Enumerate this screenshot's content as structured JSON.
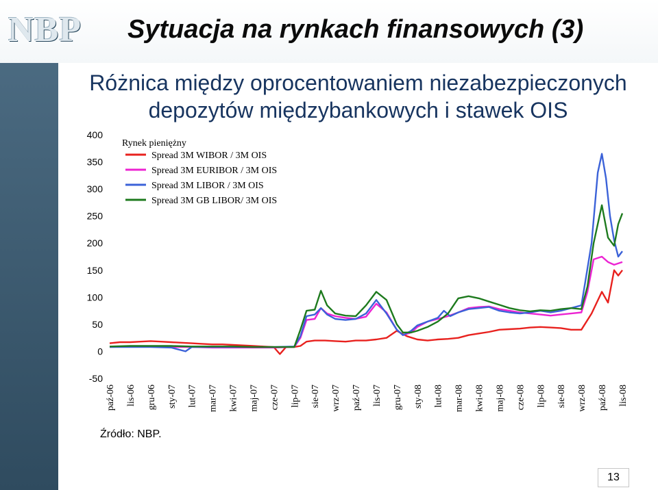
{
  "header": {
    "logo": "NBP",
    "title": "Sytuacja na rynkach finansowych  (3)"
  },
  "chart_data": {
    "type": "line",
    "title_lines": [
      "Różnica między oprocentowaniem niezabezpieczonych",
      "depozytów międzybankowych i stawek OIS"
    ],
    "ylim": [
      -50,
      400
    ],
    "yticks": [
      400,
      350,
      300,
      250,
      200,
      150,
      100,
      50,
      0,
      -50
    ],
    "x_ticks": [
      "paź-06",
      "lis-06",
      "gru-06",
      "sty-07",
      "lut-07",
      "mar-07",
      "kwi-07",
      "maj-07",
      "cze-07",
      "lip-07",
      "sie-07",
      "wrz-07",
      "paź-07",
      "lis-07",
      "gru-07",
      "sty-08",
      "lut-08",
      "mar-08",
      "kwi-08",
      "maj-08",
      "cze-08",
      "lip-08",
      "sie-08",
      "wrz-08",
      "paź-08",
      "lis-08"
    ],
    "legend_title": "Rynek pieniężny",
    "legend_position": "top-left",
    "grid": false,
    "series": [
      {
        "name": "Spread  3M WIBOR / 3M OIS",
        "color": "#e8211e",
        "points": [
          [
            0,
            15
          ],
          [
            0.5,
            17
          ],
          [
            1,
            17
          ],
          [
            1.5,
            18
          ],
          [
            2,
            19
          ],
          [
            2.5,
            18
          ],
          [
            3,
            17
          ],
          [
            3.5,
            16
          ],
          [
            4,
            15
          ],
          [
            4.5,
            14
          ],
          [
            5,
            13
          ],
          [
            5.5,
            13
          ],
          [
            6,
            12
          ],
          [
            6.5,
            11
          ],
          [
            7,
            10
          ],
          [
            7.5,
            9
          ],
          [
            8,
            8
          ],
          [
            8.3,
            -5
          ],
          [
            8.6,
            8
          ],
          [
            9,
            8
          ],
          [
            9.3,
            10
          ],
          [
            9.6,
            18
          ],
          [
            10,
            20
          ],
          [
            10.5,
            20
          ],
          [
            11,
            19
          ],
          [
            11.5,
            18
          ],
          [
            12,
            20
          ],
          [
            12.5,
            20
          ],
          [
            13,
            22
          ],
          [
            13.5,
            25
          ],
          [
            14,
            38
          ],
          [
            14.5,
            28
          ],
          [
            15,
            22
          ],
          [
            15.5,
            20
          ],
          [
            16,
            22
          ],
          [
            16.5,
            23
          ],
          [
            17,
            25
          ],
          [
            17.5,
            30
          ],
          [
            18,
            33
          ],
          [
            18.5,
            36
          ],
          [
            19,
            40
          ],
          [
            19.5,
            41
          ],
          [
            20,
            42
          ],
          [
            20.5,
            44
          ],
          [
            21,
            45
          ],
          [
            21.5,
            44
          ],
          [
            22,
            43
          ],
          [
            22.5,
            40
          ],
          [
            23,
            40
          ],
          [
            23.5,
            70
          ],
          [
            24,
            110
          ],
          [
            24.3,
            90
          ],
          [
            24.6,
            150
          ],
          [
            24.8,
            140
          ],
          [
            25,
            150
          ]
        ]
      },
      {
        "name": "Spread 3M EURIBOR / 3M OIS",
        "color": "#ec23d2",
        "points": [
          [
            0,
            8
          ],
          [
            1,
            9
          ],
          [
            2,
            9
          ],
          [
            3,
            8
          ],
          [
            4,
            8
          ],
          [
            5,
            7
          ],
          [
            6,
            7
          ],
          [
            7,
            7
          ],
          [
            8,
            7
          ],
          [
            9,
            8
          ],
          [
            9.3,
            25
          ],
          [
            9.6,
            58
          ],
          [
            10,
            60
          ],
          [
            10.3,
            80
          ],
          [
            10.6,
            70
          ],
          [
            11,
            65
          ],
          [
            11.5,
            62
          ],
          [
            12,
            60
          ],
          [
            12.5,
            64
          ],
          [
            13,
            88
          ],
          [
            13.5,
            72
          ],
          [
            14,
            40
          ],
          [
            14.3,
            30
          ],
          [
            14.7,
            35
          ],
          [
            15,
            45
          ],
          [
            15.5,
            55
          ],
          [
            16,
            60
          ],
          [
            16.5,
            65
          ],
          [
            17,
            72
          ],
          [
            17.5,
            80
          ],
          [
            18,
            82
          ],
          [
            18.5,
            83
          ],
          [
            19,
            78
          ],
          [
            19.5,
            75
          ],
          [
            20,
            72
          ],
          [
            20.5,
            70
          ],
          [
            21,
            68
          ],
          [
            21.5,
            66
          ],
          [
            22,
            68
          ],
          [
            22.5,
            70
          ],
          [
            23,
            72
          ],
          [
            23.3,
            110
          ],
          [
            23.6,
            170
          ],
          [
            24,
            175
          ],
          [
            24.3,
            165
          ],
          [
            24.6,
            160
          ],
          [
            25,
            165
          ]
        ]
      },
      {
        "name": "Spread 3M LIBOR / 3M OIS",
        "color": "#3b62d8",
        "points": [
          [
            0,
            8
          ],
          [
            1,
            8
          ],
          [
            2,
            8
          ],
          [
            3,
            7
          ],
          [
            3.7,
            0
          ],
          [
            4,
            8
          ],
          [
            5,
            8
          ],
          [
            6,
            8
          ],
          [
            7,
            8
          ],
          [
            8,
            8
          ],
          [
            9,
            9
          ],
          [
            9.3,
            28
          ],
          [
            9.6,
            65
          ],
          [
            10,
            68
          ],
          [
            10.3,
            80
          ],
          [
            10.6,
            68
          ],
          [
            11,
            60
          ],
          [
            11.5,
            58
          ],
          [
            12,
            60
          ],
          [
            12.5,
            70
          ],
          [
            13,
            95
          ],
          [
            13.5,
            70
          ],
          [
            14,
            40
          ],
          [
            14.3,
            30
          ],
          [
            14.7,
            38
          ],
          [
            15,
            48
          ],
          [
            15.5,
            55
          ],
          [
            16,
            62
          ],
          [
            16.3,
            75
          ],
          [
            16.6,
            65
          ],
          [
            17,
            72
          ],
          [
            17.5,
            78
          ],
          [
            18,
            80
          ],
          [
            18.5,
            82
          ],
          [
            19,
            75
          ],
          [
            19.5,
            72
          ],
          [
            20,
            70
          ],
          [
            20.5,
            72
          ],
          [
            21,
            75
          ],
          [
            21.5,
            72
          ],
          [
            22,
            75
          ],
          [
            22.5,
            80
          ],
          [
            23,
            85
          ],
          [
            23.2,
            130
          ],
          [
            23.5,
            200
          ],
          [
            23.8,
            330
          ],
          [
            24,
            365
          ],
          [
            24.2,
            320
          ],
          [
            24.4,
            250
          ],
          [
            24.6,
            205
          ],
          [
            24.8,
            175
          ],
          [
            25,
            185
          ]
        ]
      },
      {
        "name": "Spread 3M GB LIBOR/ 3M OIS",
        "color": "#1d7a1d",
        "points": [
          [
            0,
            9
          ],
          [
            1,
            10
          ],
          [
            2,
            10
          ],
          [
            3,
            10
          ],
          [
            4,
            9
          ],
          [
            5,
            9
          ],
          [
            6,
            9
          ],
          [
            7,
            8
          ],
          [
            8,
            8
          ],
          [
            9,
            8
          ],
          [
            9.3,
            40
          ],
          [
            9.6,
            75
          ],
          [
            10,
            77
          ],
          [
            10.3,
            112
          ],
          [
            10.6,
            85
          ],
          [
            11,
            70
          ],
          [
            11.5,
            66
          ],
          [
            12,
            65
          ],
          [
            12.5,
            85
          ],
          [
            13,
            110
          ],
          [
            13.5,
            95
          ],
          [
            14,
            50
          ],
          [
            14.3,
            35
          ],
          [
            14.7,
            35
          ],
          [
            15,
            38
          ],
          [
            15.5,
            45
          ],
          [
            16,
            55
          ],
          [
            16.5,
            70
          ],
          [
            17,
            98
          ],
          [
            17.5,
            102
          ],
          [
            18,
            98
          ],
          [
            18.5,
            92
          ],
          [
            19,
            86
          ],
          [
            19.5,
            80
          ],
          [
            20,
            76
          ],
          [
            20.5,
            74
          ],
          [
            21,
            76
          ],
          [
            21.5,
            75
          ],
          [
            22,
            78
          ],
          [
            22.5,
            80
          ],
          [
            23,
            78
          ],
          [
            23.3,
            120
          ],
          [
            23.6,
            200
          ],
          [
            24,
            270
          ],
          [
            24.3,
            210
          ],
          [
            24.6,
            195
          ],
          [
            24.8,
            235
          ],
          [
            25,
            255
          ]
        ]
      }
    ]
  },
  "source": "Źródło: NBP.",
  "page_number": "13"
}
